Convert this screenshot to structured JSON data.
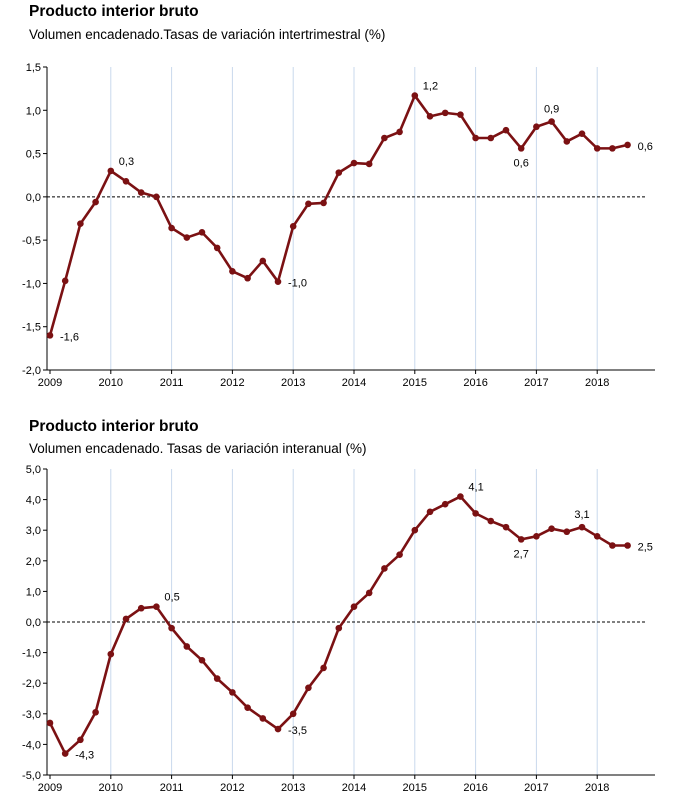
{
  "chart_data": [
    {
      "type": "line",
      "title": "Producto interior bruto",
      "subtitle": "Volumen encadenado.Tasas de variación intertrimestral (%)",
      "color": "#7b1113",
      "ylim": [
        -2.0,
        1.5
      ],
      "yticks": [
        "1,5",
        "1,0",
        "0,5",
        "0,0",
        "-0,5",
        "-1,0",
        "-1,5",
        "-2,0"
      ],
      "ytick_values": [
        1.5,
        1.0,
        0.5,
        0.0,
        -0.5,
        -1.0,
        -1.5,
        -2.0
      ],
      "xticks": [
        "2009",
        "2010",
        "2011",
        "2012",
        "2013",
        "2014",
        "2015",
        "2016",
        "2017",
        "2018"
      ],
      "values": [
        -1.6,
        -0.97,
        -0.31,
        -0.06,
        0.3,
        0.18,
        0.05,
        0.0,
        -0.36,
        -0.47,
        -0.41,
        -0.59,
        -0.86,
        -0.94,
        -0.74,
        -0.98,
        -0.34,
        -0.08,
        -0.07,
        0.28,
        0.39,
        0.38,
        0.68,
        0.75,
        1.17,
        0.93,
        0.97,
        0.95,
        0.68,
        0.68,
        0.77,
        0.56,
        0.81,
        0.87,
        0.64,
        0.73,
        0.56,
        0.56,
        0.6
      ],
      "annotations": [
        {
          "index": 0,
          "text": "-1,6",
          "pos": "right"
        },
        {
          "index": 4,
          "text": "0,3",
          "pos": "above-right"
        },
        {
          "index": 15,
          "text": "-1,0",
          "pos": "right"
        },
        {
          "index": 24,
          "text": "1,2",
          "pos": "above-right"
        },
        {
          "index": 31,
          "text": "0,6",
          "pos": "below"
        },
        {
          "index": 33,
          "text": "0,9",
          "pos": "above"
        },
        {
          "index": 38,
          "text": "0,6",
          "pos": "right"
        }
      ]
    },
    {
      "type": "line",
      "title": "Producto interior bruto",
      "subtitle": "Volumen encadenado. Tasas de variación interanual (%)",
      "color": "#7b1113",
      "ylim": [
        -5.0,
        5.0
      ],
      "yticks": [
        "5,0",
        "4,0",
        "3,0",
        "2,0",
        "1,0",
        "0,0",
        "-1,0",
        "-2,0",
        "-3,0",
        "-4,0",
        "-5,0"
      ],
      "ytick_values": [
        5,
        4,
        3,
        2,
        1,
        0,
        -1,
        -2,
        -3,
        -4,
        -5
      ],
      "xticks": [
        "2009",
        "2010",
        "2011",
        "2012",
        "2013",
        "2014",
        "2015",
        "2016",
        "2017",
        "2018"
      ],
      "values": [
        -3.3,
        -4.3,
        -3.85,
        -2.95,
        -1.05,
        0.1,
        0.45,
        0.5,
        -0.2,
        -0.8,
        -1.25,
        -1.85,
        -2.3,
        -2.8,
        -3.15,
        -3.5,
        -3.0,
        -2.15,
        -1.5,
        -0.2,
        0.5,
        0.95,
        1.75,
        2.2,
        3.0,
        3.6,
        3.85,
        4.1,
        3.55,
        3.3,
        3.1,
        2.7,
        2.8,
        3.05,
        2.95,
        3.1,
        2.8,
        2.5,
        2.5
      ],
      "annotations": [
        {
          "index": 1,
          "text": "-4,3",
          "pos": "right"
        },
        {
          "index": 7,
          "text": "0,5",
          "pos": "above-right"
        },
        {
          "index": 15,
          "text": "-3,5",
          "pos": "right"
        },
        {
          "index": 27,
          "text": "4,1",
          "pos": "above-right"
        },
        {
          "index": 31,
          "text": "2,7",
          "pos": "below"
        },
        {
          "index": 35,
          "text": "3,1",
          "pos": "above"
        },
        {
          "index": 38,
          "text": "2,5",
          "pos": "right"
        }
      ]
    }
  ]
}
